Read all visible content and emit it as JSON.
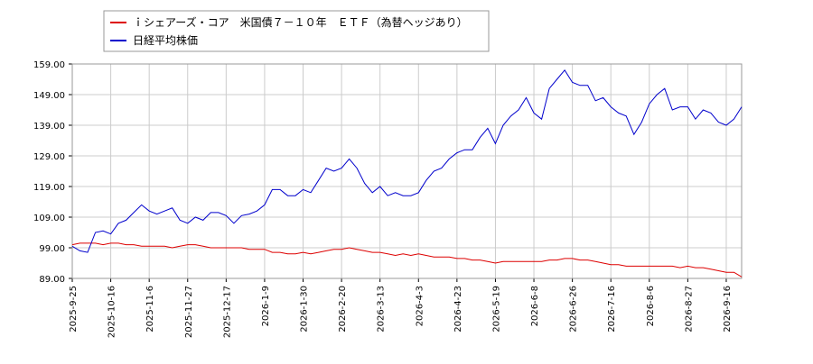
{
  "chart_data": {
    "type": "line",
    "categories": [
      "2025-9-25",
      null,
      null,
      null,
      null,
      "2025-10-16",
      null,
      null,
      null,
      null,
      "2025-11-6",
      null,
      null,
      null,
      null,
      "2025-11-27",
      null,
      null,
      null,
      null,
      "2025-12-17",
      null,
      null,
      null,
      null,
      "2026-1-9",
      null,
      null,
      null,
      null,
      "2026-1-30",
      null,
      null,
      null,
      null,
      "2026-2-20",
      null,
      null,
      null,
      null,
      "2026-3-13",
      null,
      null,
      null,
      null,
      "2026-4-3",
      null,
      null,
      null,
      null,
      "2026-4-23",
      null,
      null,
      null,
      null,
      "2026-5-19",
      null,
      null,
      null,
      null,
      "2026-6-8",
      null,
      null,
      null,
      null,
      "2026-6-26",
      null,
      null,
      null,
      null,
      "2026-7-16",
      null,
      null,
      null,
      null,
      "2026-8-6",
      null,
      null,
      null,
      null,
      "2026-8-27",
      null,
      null,
      null,
      null,
      "2026-9-16",
      null,
      null
    ],
    "series": [
      {
        "name": "ｉシェアーズ・コア　米国債７－１０年　ＥＴＦ（為替ヘッジあり）",
        "color": "#dd0000",
        "values": [
          100,
          100.5,
          100.5,
          100.5,
          100,
          100.5,
          100.5,
          100,
          100,
          99.5,
          99.5,
          99.5,
          99.5,
          99,
          99.5,
          100,
          100,
          99.5,
          99,
          99,
          99,
          99,
          99,
          98.5,
          98.5,
          98.5,
          97.5,
          97.5,
          97,
          97,
          97.5,
          97,
          97.5,
          98,
          98.5,
          98.5,
          99,
          98.5,
          98,
          97.5,
          97.5,
          97,
          96.5,
          97,
          96.5,
          97,
          96.5,
          96,
          96,
          96,
          95.5,
          95.5,
          95,
          95,
          94.5,
          94,
          94.5,
          94.5,
          94.5,
          94.5,
          94.5,
          94.5,
          95,
          95,
          95.5,
          95.5,
          95,
          95,
          94.5,
          94,
          93.5,
          93.5,
          93,
          93,
          93,
          93,
          93,
          93,
          93,
          92.5,
          93,
          92.5,
          92.5,
          92,
          91.5,
          91,
          91,
          89.5
        ]
      },
      {
        "name": "日経平均株価",
        "color": "#0000cc",
        "values": [
          99.5,
          98,
          97.5,
          104,
          104.5,
          103.5,
          107,
          108,
          110.5,
          113,
          111,
          110,
          111,
          112,
          108,
          107,
          109,
          108,
          110.5,
          110.5,
          109.5,
          107,
          109.5,
          110,
          111,
          113,
          118,
          118,
          116,
          116,
          118,
          117,
          121,
          125,
          124,
          125,
          128,
          125,
          120,
          117,
          119,
          116,
          117,
          116,
          116,
          117,
          121,
          124,
          125,
          128,
          130,
          131,
          131,
          135,
          138,
          133,
          139,
          142,
          144,
          148,
          143,
          141,
          151,
          154,
          157,
          153,
          152,
          152,
          147,
          148,
          145,
          143,
          142,
          136,
          140,
          146,
          149,
          151,
          144,
          145,
          145,
          141,
          144,
          143,
          140,
          139,
          141,
          145
        ]
      }
    ],
    "ylim": [
      89,
      159
    ],
    "yticks": [
      {
        "value": 89,
        "label": "89.00"
      },
      {
        "value": 99,
        "label": "99.00"
      },
      {
        "value": 109,
        "label": "109.00"
      },
      {
        "value": 119,
        "label": "119.00"
      },
      {
        "value": 129,
        "label": "129.00"
      },
      {
        "value": 139,
        "label": "139.00"
      },
      {
        "value": 149,
        "label": "149.00"
      },
      {
        "value": 159,
        "label": "159.00"
      }
    ],
    "grid": true,
    "legend": "top-left"
  }
}
